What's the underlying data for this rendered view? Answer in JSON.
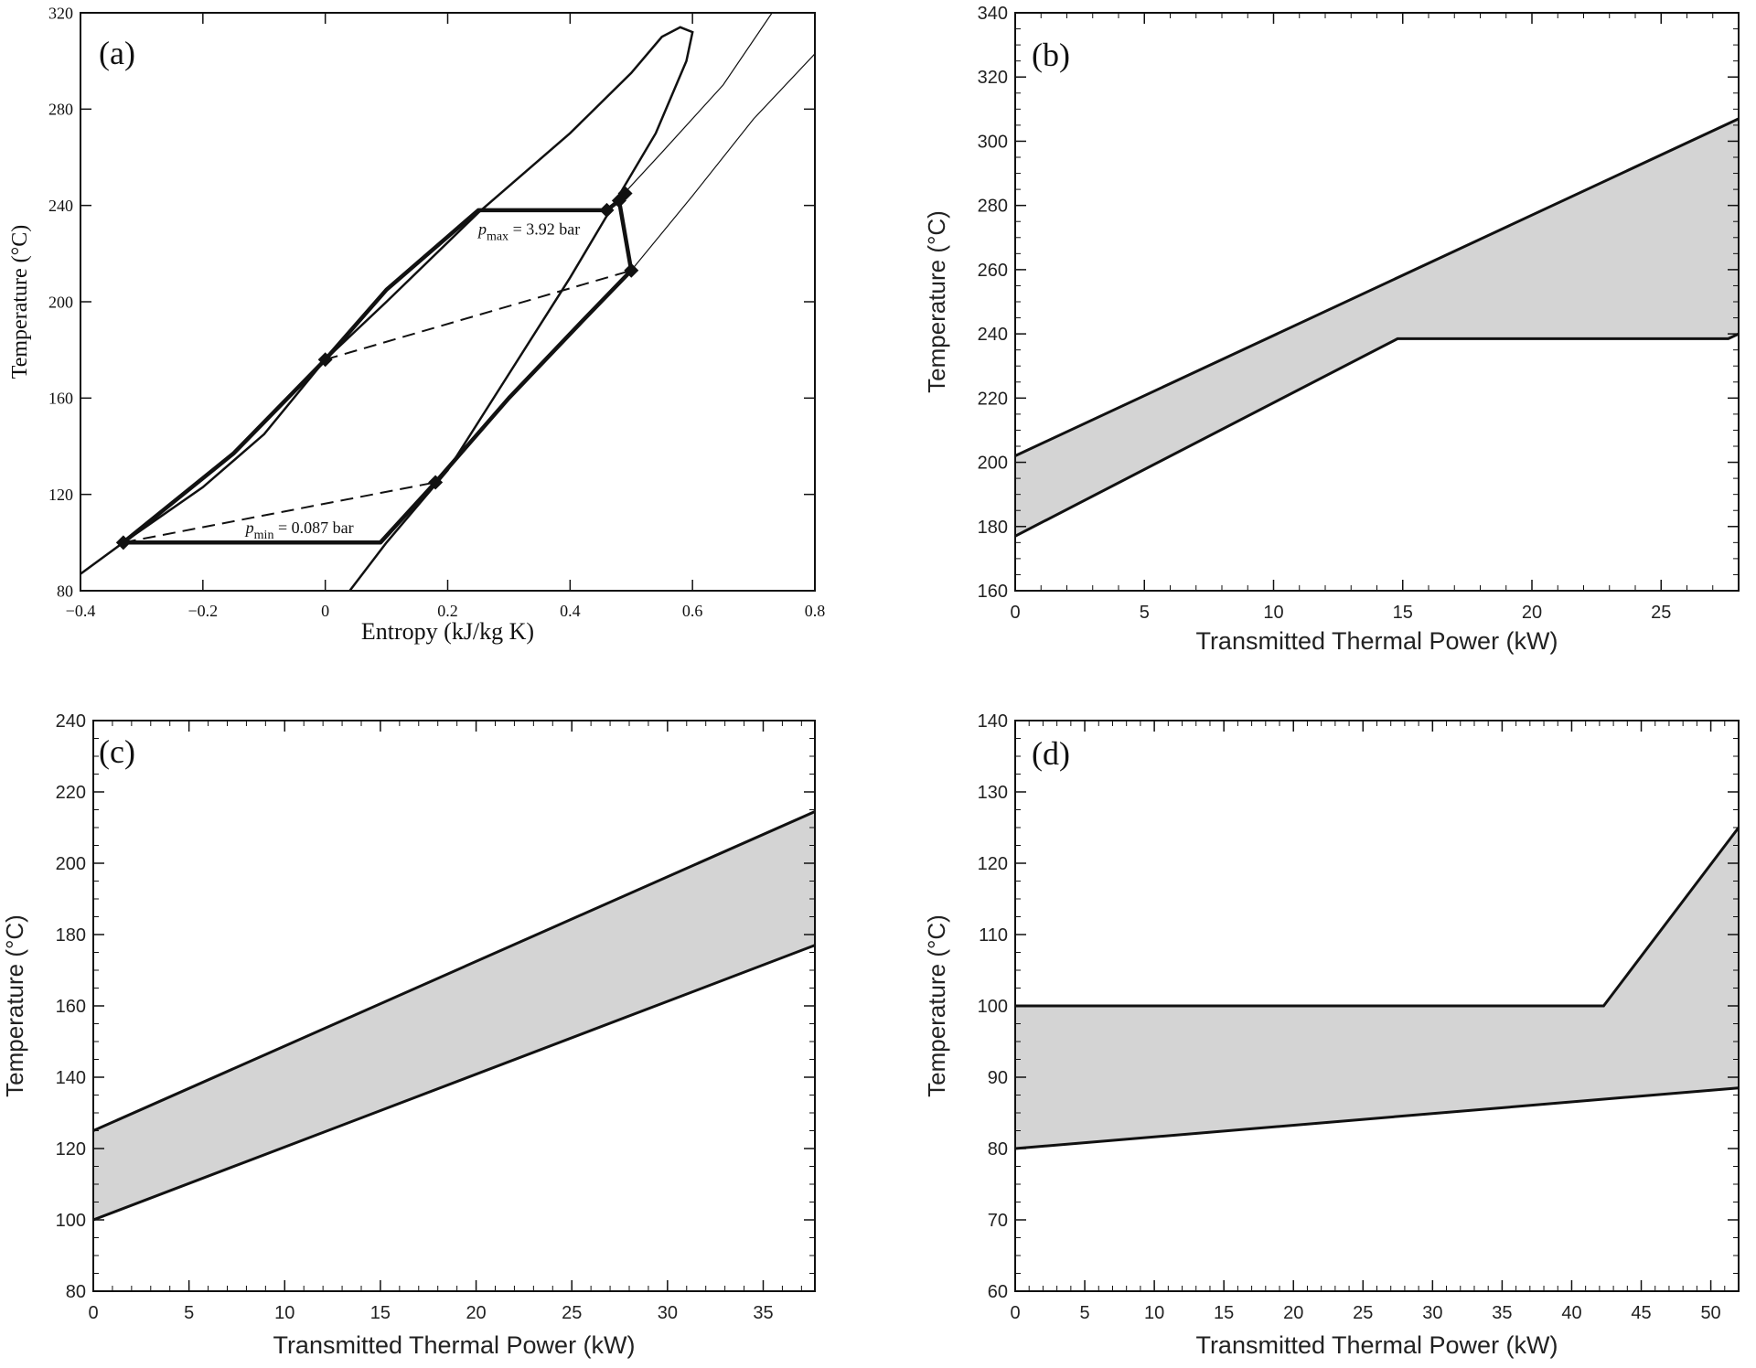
{
  "chart_data": [
    {
      "panel": "(a)",
      "type": "line",
      "xlabel": "Entropy (kJ/kg K)",
      "ylabel": "Temperature (°C)",
      "xlim": [
        -0.4,
        0.8
      ],
      "ylim": [
        80,
        320
      ],
      "xticks": [
        -0.4,
        -0.2,
        0,
        0.2,
        0.4,
        0.6,
        0.8
      ],
      "xtick_labels": [
        "−0.4",
        "−0.2",
        "0",
        "0.2",
        "0.4",
        "0.6",
        "0.8"
      ],
      "yticks": [
        80,
        120,
        160,
        200,
        240,
        280,
        320
      ],
      "annotations": [
        {
          "main": "p",
          "sub": "max",
          "text": " = 3.92 bar",
          "x": 0.25,
          "y": 228
        },
        {
          "main": "p",
          "sub": "min",
          "text": " = 0.087 bar",
          "x": -0.13,
          "y": 104
        }
      ],
      "series": [
        {
          "style": "saturation-dome",
          "points": [
            [
              -0.4,
              87
            ],
            [
              -0.33,
              100
            ],
            [
              -0.2,
              123
            ],
            [
              -0.1,
              145
            ],
            [
              0,
              176
            ],
            [
              0.1,
              200
            ],
            [
              0.25,
              237
            ],
            [
              0.4,
              270
            ],
            [
              0.5,
              295
            ],
            [
              0.55,
              310
            ],
            [
              0.58,
              314
            ],
            [
              0.6,
              312
            ],
            [
              0.59,
              300
            ],
            [
              0.54,
              270
            ],
            [
              0.47,
              240
            ],
            [
              0.4,
              210
            ],
            [
              0.3,
              170
            ],
            [
              0.2,
              130
            ],
            [
              0.1,
              100
            ],
            [
              0.04,
              80
            ]
          ]
        },
        {
          "style": "isobar-thin",
          "points": [
            [
              0.47,
              240
            ],
            [
              0.55,
              262
            ],
            [
              0.65,
              290
            ],
            [
              0.73,
              320
            ]
          ]
        },
        {
          "style": "isobar-thin",
          "points": [
            [
              0.5,
              213
            ],
            [
              0.6,
              244
            ],
            [
              0.7,
              276
            ],
            [
              0.8,
              303
            ]
          ]
        },
        {
          "style": "cycle-thick",
          "points": [
            [
              -0.33,
              100
            ],
            [
              0.09,
              100
            ],
            [
              0.18,
              125
            ],
            [
              0.3,
              160
            ],
            [
              0.42,
              192
            ],
            [
              0.5,
              213
            ],
            [
              0.48,
              242
            ],
            [
              0.46,
              238
            ],
            [
              0.25,
              238
            ],
            [
              0.1,
              205
            ],
            [
              0,
              176
            ],
            [
              -0.15,
              137
            ],
            [
              -0.33,
              100
            ]
          ]
        },
        {
          "style": "dashed",
          "points": [
            [
              0,
              176
            ],
            [
              0.5,
              213
            ]
          ]
        },
        {
          "style": "dashed",
          "points": [
            [
              -0.33,
              100
            ],
            [
              0.18,
              125
            ]
          ]
        }
      ],
      "markers": [
        [
          -0.33,
          100
        ],
        [
          0,
          176
        ],
        [
          0.18,
          125
        ],
        [
          0.5,
          213
        ],
        [
          0.46,
          238
        ],
        [
          0.48,
          242
        ],
        [
          0.49,
          245
        ]
      ]
    },
    {
      "panel": "(b)",
      "type": "area",
      "xlabel": "Transmitted Thermal Power (kW)",
      "ylabel": "Temperature (°C)",
      "xlim": [
        0,
        28
      ],
      "ylim": [
        160,
        340
      ],
      "xticks": [
        0,
        5,
        10,
        15,
        20,
        25
      ],
      "yticks": [
        160,
        180,
        200,
        220,
        240,
        260,
        280,
        300,
        320,
        340
      ],
      "upper": [
        [
          0,
          202
        ],
        [
          28,
          307
        ]
      ],
      "lower": [
        [
          0,
          177
        ],
        [
          14.8,
          238.5
        ],
        [
          27.6,
          238.5
        ],
        [
          28,
          240
        ]
      ]
    },
    {
      "panel": "(c)",
      "type": "area",
      "xlabel": "Transmitted Thermal Power (kW)",
      "ylabel": "Temperature (°C)",
      "xlim": [
        0,
        37.7
      ],
      "ylim": [
        80,
        240
      ],
      "xticks": [
        0,
        5,
        10,
        15,
        20,
        25,
        30,
        35
      ],
      "yticks": [
        80,
        100,
        120,
        140,
        160,
        180,
        200,
        220,
        240
      ],
      "upper": [
        [
          0,
          125
        ],
        [
          37.7,
          214.5
        ]
      ],
      "lower": [
        [
          0,
          100
        ],
        [
          37.7,
          177
        ]
      ]
    },
    {
      "panel": "(d)",
      "type": "area",
      "xlabel": "Transmitted Thermal Power (kW)",
      "ylabel": "Temperature (°C)",
      "xlim": [
        0,
        52
      ],
      "ylim": [
        60,
        140
      ],
      "xticks": [
        0,
        5,
        10,
        15,
        20,
        25,
        30,
        35,
        40,
        45,
        50
      ],
      "yticks": [
        60,
        70,
        80,
        90,
        100,
        110,
        120,
        130,
        140
      ],
      "upper": [
        [
          0,
          100
        ],
        [
          42.3,
          100
        ],
        [
          52,
          125
        ]
      ],
      "lower": [
        [
          0,
          80
        ],
        [
          52,
          88.5
        ]
      ]
    }
  ]
}
